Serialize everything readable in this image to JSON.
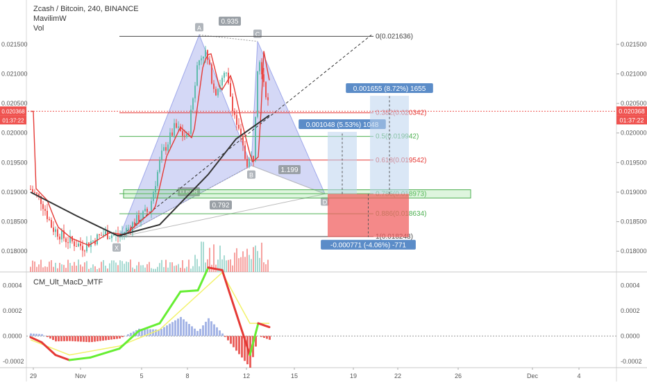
{
  "header": {
    "symbol_line": "Zcash / Bitcoin, 240, BINANCE",
    "indicator_1": "MavilimW",
    "indicator_2": "Vol",
    "macd_name": "CM_Ult_MacD_MTF"
  },
  "price_badge": {
    "price": "0.020368",
    "countdown": "01:37:22"
  },
  "colors": {
    "up": "#5fbcad",
    "down": "#ef5350",
    "pattern_fill": "#9fa8ea",
    "fib_green": "#4caf50",
    "fib_red": "#e53935",
    "long_box": "#5b8cc8",
    "short_box": "#f06262",
    "mavilim": "#e53935",
    "ma_black": "#333333",
    "macd_green": "#66ee33",
    "macd_red": "#e53935",
    "signal": "#f2f26a"
  },
  "chart_data": [
    {
      "type": "candlestick",
      "title": "Zcash / Bitcoin, 240, BINANCE",
      "ylim": [
        0.01765,
        0.02225
      ],
      "y_ticks": [
        "0.021500",
        "0.021000",
        "0.020500",
        "0.020000",
        "0.019500",
        "0.019000",
        "0.018500",
        "0.018000"
      ],
      "x_ticks": [
        "29",
        "Nov",
        "5",
        "8",
        "12",
        "15",
        "19",
        "22",
        "26",
        "Dec",
        "4"
      ],
      "current_price": 0.020368,
      "pattern_points": [
        {
          "label": "X",
          "value": 0.01824
        },
        {
          "label": "A",
          "value": 0.02166
        },
        {
          "label": "B",
          "value": 0.01945
        },
        {
          "label": "C",
          "value": 0.02155
        },
        {
          "label": "D",
          "value": 0.01897
        }
      ],
      "pattern_ratios": [
        "0.935",
        "0.668",
        "1.199",
        "0.792"
      ],
      "fib_levels": [
        {
          "label": "0(0.021636)",
          "value": 0.021636
        },
        {
          "label": "0.382(0.020342)",
          "value": 0.020342
        },
        {
          "label": "0.5(0.019942)",
          "value": 0.019942
        },
        {
          "label": "0.618(0.019542)",
          "value": 0.019542
        },
        {
          "label": "0.786(0.018973)",
          "value": 0.018973
        },
        {
          "label": "0.886(0.018634)",
          "value": 0.018634
        },
        {
          "label": "1(0.018248)",
          "value": 0.018248
        }
      ],
      "measure_boxes": [
        {
          "label": "0.001048 (5.53%) 1048",
          "from": 0.01897,
          "to": 0.02002
        },
        {
          "label": "0.001655 (8.72%) 1655",
          "from": 0.01897,
          "to": 0.02063
        },
        {
          "label": "-0.000771 (-4.06%) -771",
          "from": 0.01897,
          "to": 0.01824
        }
      ]
    },
    {
      "type": "histogram",
      "title": "CM_Ult_MacD_MTF",
      "ylim": [
        -0.00025,
        0.0005
      ],
      "y_ticks": [
        "0.0004",
        "0.0002",
        "0.0000",
        "-0.0002"
      ]
    }
  ]
}
